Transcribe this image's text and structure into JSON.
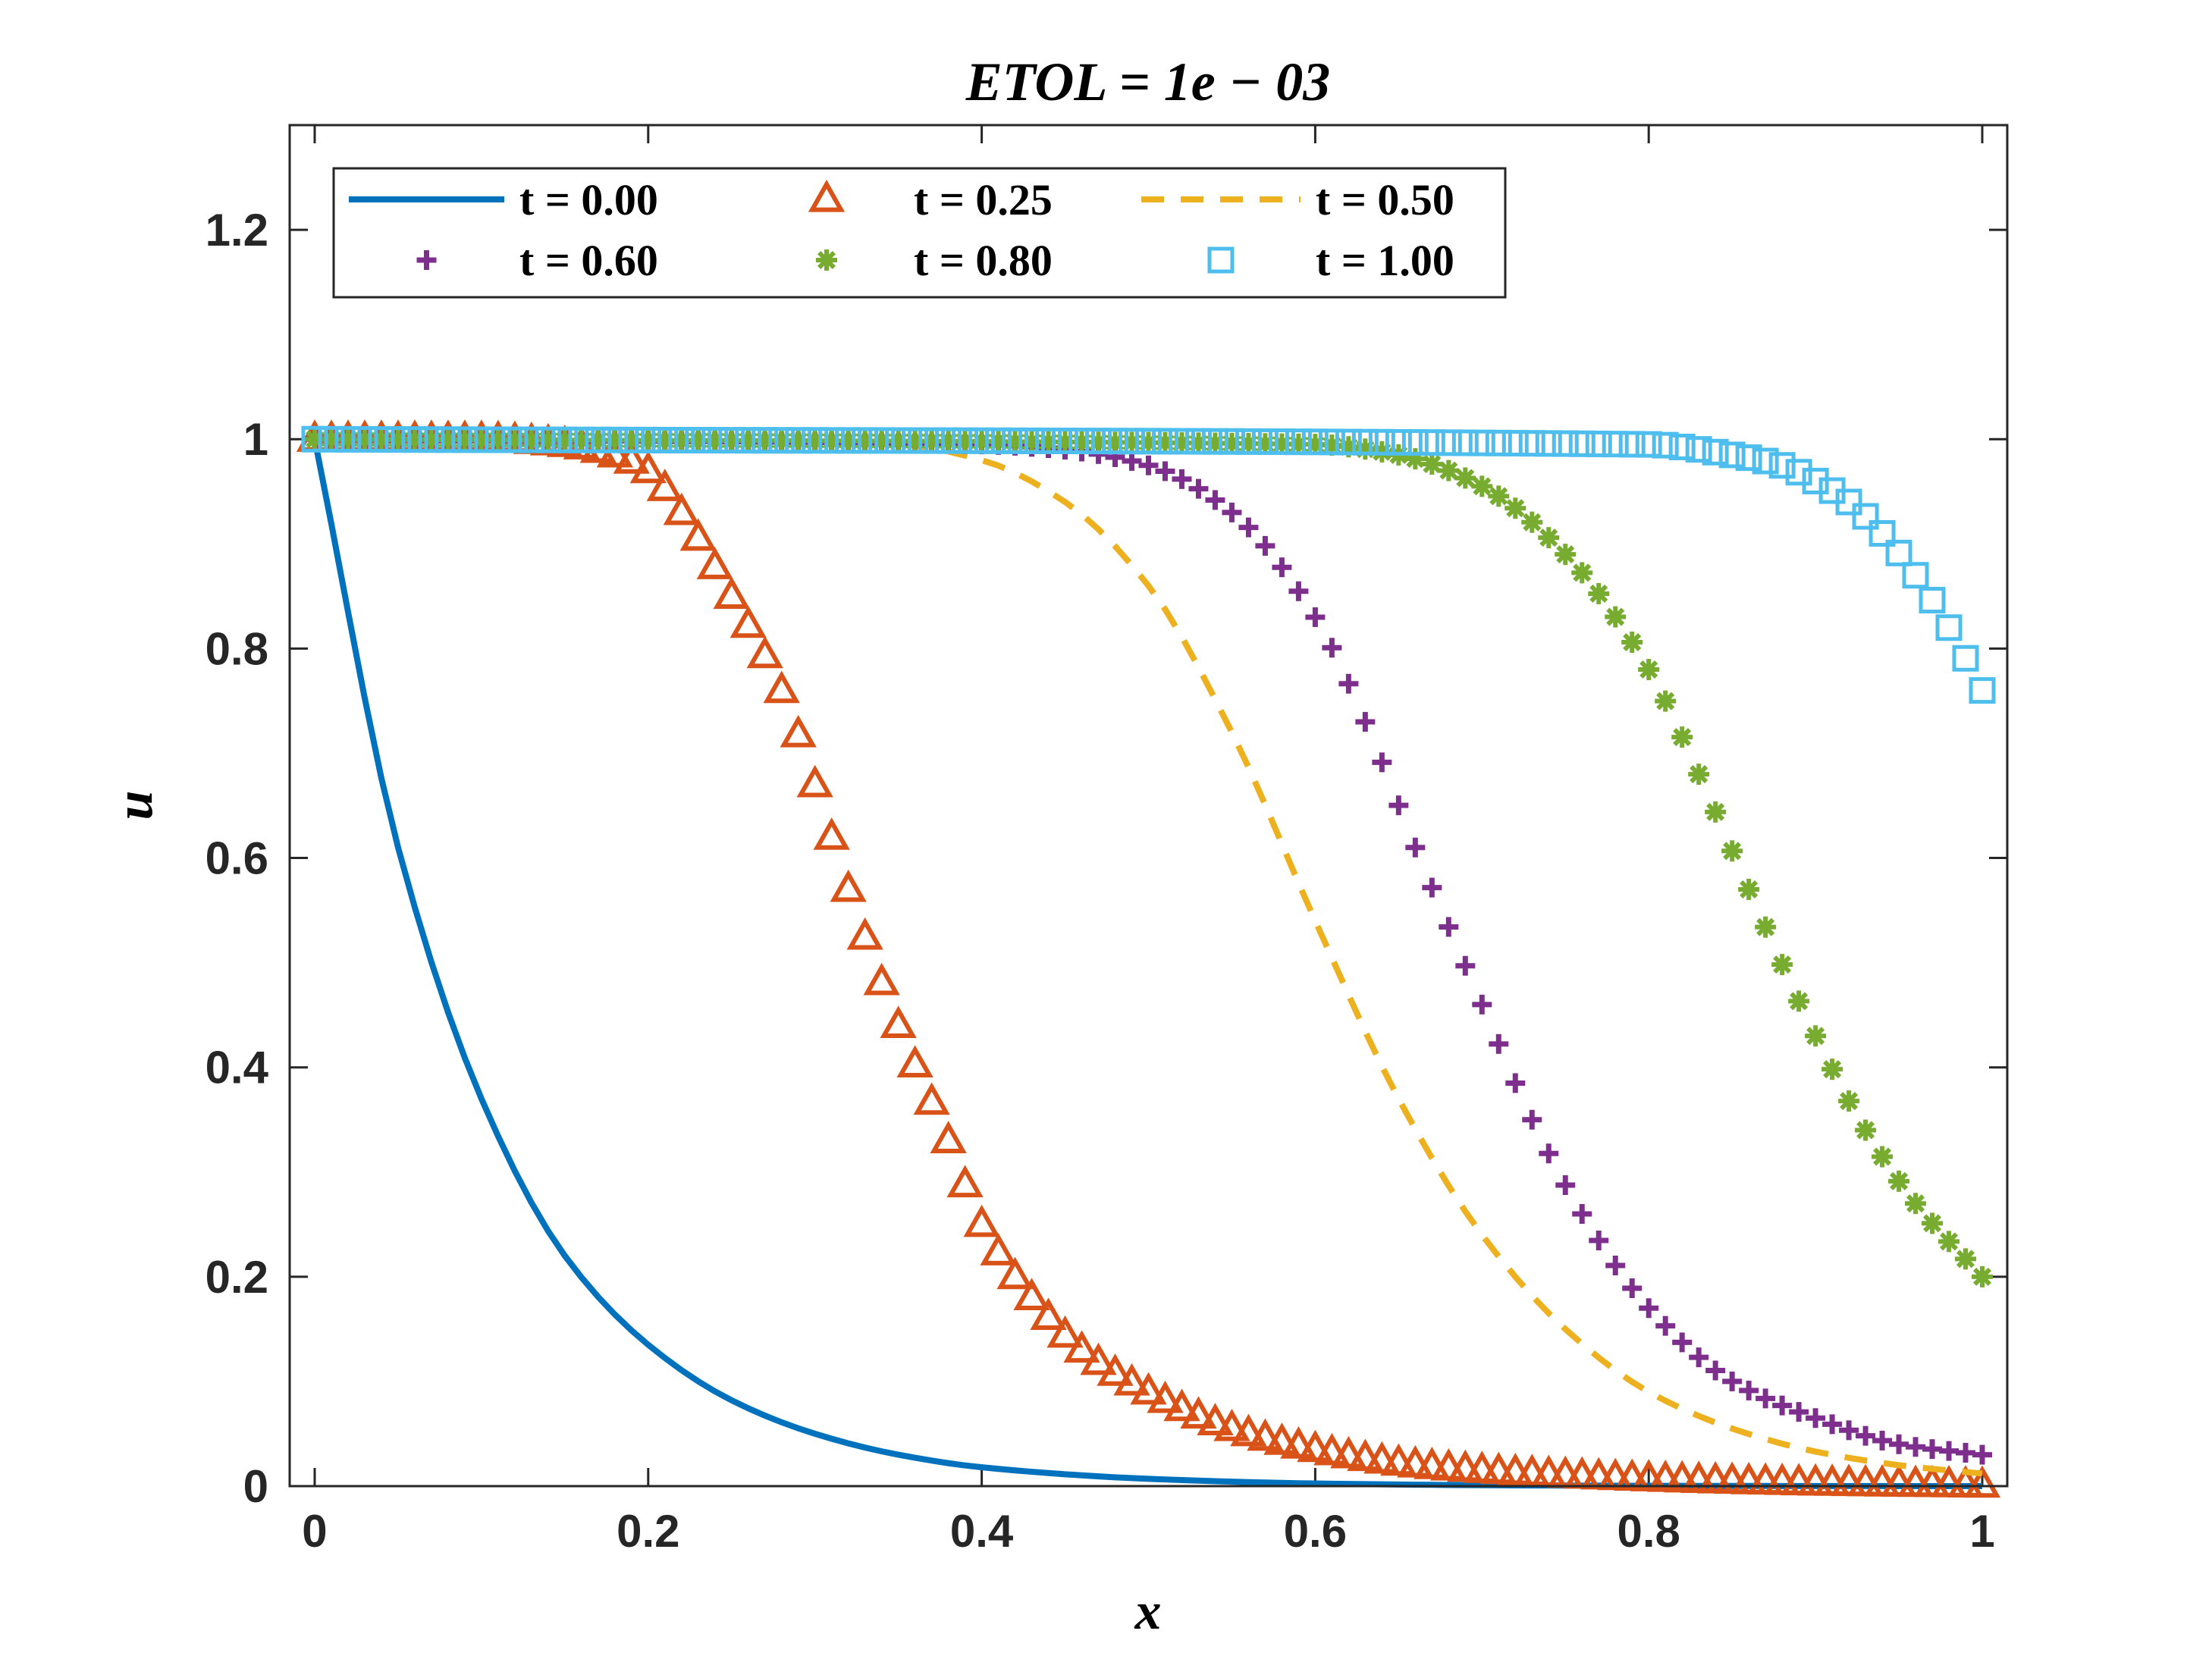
{
  "chart_data": {
    "type": "line",
    "title": "ETOL = 1e − 03",
    "xlabel": "x",
    "ylabel": "u",
    "xlim": [
      -0.015,
      1.015
    ],
    "ylim": [
      0,
      1.3
    ],
    "xticks": [
      0,
      0.2,
      0.4,
      0.6,
      0.8,
      1
    ],
    "xtick_labels": [
      "0",
      "0.2",
      "0.4",
      "0.6",
      "0.8",
      "1"
    ],
    "yticks": [
      0,
      0.2,
      0.4,
      0.6,
      0.8,
      1,
      1.2
    ],
    "ytick_labels": [
      "0",
      "0.2",
      "0.4",
      "0.6",
      "0.8",
      "1",
      "1.2"
    ],
    "grid": false,
    "legend_position": "top-left",
    "series": [
      {
        "name": "t = 0.00",
        "style": "solid-line",
        "color": "#0072BD",
        "x": [
          0,
          0.05,
          0.1,
          0.15,
          0.2,
          0.25,
          0.3,
          0.35,
          0.4,
          0.5,
          0.6,
          0.7,
          0.8,
          0.9,
          1.0
        ],
        "y": [
          1.0,
          0.61,
          0.37,
          0.22,
          0.135,
          0.082,
          0.05,
          0.03,
          0.018,
          0.007,
          0.0025,
          0.0009,
          0.0003,
          0.0001,
          0.0
        ]
      },
      {
        "name": "t = 0.25",
        "style": "triangle-markers",
        "color": "#D95319",
        "x": [
          0,
          0.1,
          0.15,
          0.18,
          0.2,
          0.22,
          0.25,
          0.28,
          0.3,
          0.32,
          0.35,
          0.38,
          0.4,
          0.43,
          0.46,
          0.5,
          0.55,
          0.6,
          0.65,
          0.7,
          0.8,
          0.9,
          1.0
        ],
        "y": [
          1.0,
          1.0,
          0.995,
          0.985,
          0.97,
          0.93,
          0.85,
          0.76,
          0.67,
          0.57,
          0.44,
          0.33,
          0.25,
          0.18,
          0.13,
          0.09,
          0.055,
          0.035,
          0.022,
          0.015,
          0.007,
          0.003,
          0.001
        ]
      },
      {
        "name": "t = 0.50",
        "style": "dashed-line",
        "color": "#EDB120",
        "x": [
          0,
          0.35,
          0.4,
          0.45,
          0.5,
          0.55,
          0.6,
          0.65,
          0.7,
          0.75,
          0.8,
          0.85,
          0.9,
          0.95,
          1.0
        ],
        "y": [
          1.0,
          0.995,
          0.98,
          0.94,
          0.86,
          0.72,
          0.54,
          0.37,
          0.24,
          0.15,
          0.09,
          0.055,
          0.033,
          0.02,
          0.012
        ]
      },
      {
        "name": "t = 0.60",
        "style": "plus-markers",
        "color": "#7E2F8E",
        "x": [
          0,
          0.4,
          0.45,
          0.5,
          0.55,
          0.6,
          0.63,
          0.66,
          0.7,
          0.73,
          0.76,
          0.8,
          0.85,
          0.9,
          0.95,
          1.0
        ],
        "y": [
          1.0,
          0.995,
          0.99,
          0.975,
          0.93,
          0.83,
          0.73,
          0.61,
          0.46,
          0.35,
          0.26,
          0.17,
          0.1,
          0.065,
          0.04,
          0.03
        ]
      },
      {
        "name": "t = 0.80",
        "style": "asterisk-markers",
        "color": "#77AC30",
        "x": [
          0,
          0.6,
          0.65,
          0.7,
          0.75,
          0.8,
          0.83,
          0.86,
          0.9,
          0.93,
          0.96,
          1.0
        ],
        "y": [
          1.0,
          0.995,
          0.985,
          0.955,
          0.89,
          0.78,
          0.68,
          0.57,
          0.43,
          0.34,
          0.27,
          0.2
        ]
      },
      {
        "name": "t = 1.00",
        "style": "square-markers",
        "color": "#4DBEEE",
        "x": [
          0,
          0.8,
          0.85,
          0.88,
          0.9,
          0.92,
          0.94,
          0.96,
          0.98,
          1.0
        ],
        "y": [
          1.0,
          0.995,
          0.985,
          0.975,
          0.96,
          0.94,
          0.91,
          0.87,
          0.82,
          0.76
        ]
      }
    ]
  }
}
